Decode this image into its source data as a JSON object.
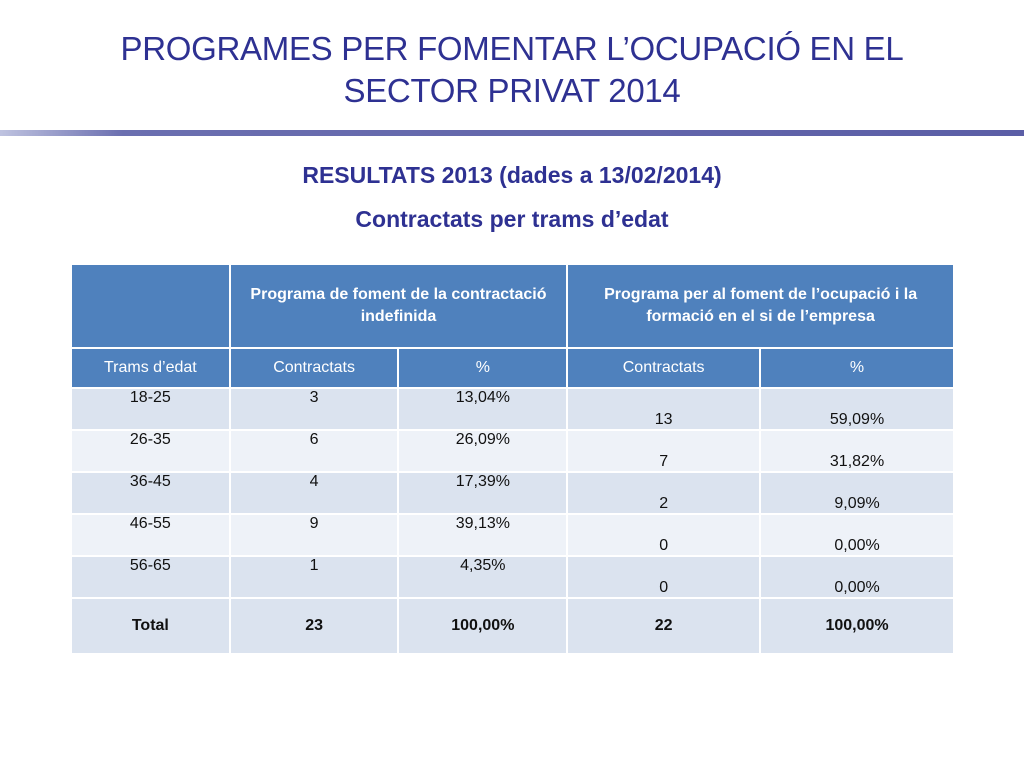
{
  "header": {
    "title_line1": "PROGRAMES PER FOMENTAR L’OCUPACIÓ EN EL",
    "title_line2": "SECTOR PRIVAT 2014",
    "subtitle": "RESULTATS 2013 (dades a 13/02/2014)",
    "subtitle2": "Contractats per trams d’edat"
  },
  "table": {
    "programs": [
      "Programa de foment de la contractació indefinida",
      "Programa per al foment de l’ocupació i la formació en el si de l’empresa"
    ],
    "columns": [
      "Trams d’edat",
      "Contractats",
      "%",
      "Contractats",
      "%"
    ],
    "rows": [
      {
        "age": "18-25",
        "p1_count": "3",
        "p1_pct": "13,04%",
        "p2_count": "13",
        "p2_pct": "59,09%"
      },
      {
        "age": "26-35",
        "p1_count": "6",
        "p1_pct": "26,09%",
        "p2_count": "7",
        "p2_pct": "31,82%"
      },
      {
        "age": "36-45",
        "p1_count": "4",
        "p1_pct": "17,39%",
        "p2_count": "2",
        "p2_pct": "9,09%"
      },
      {
        "age": "46-55",
        "p1_count": "9",
        "p1_pct": "39,13%",
        "p2_count": "0",
        "p2_pct": "0,00%"
      },
      {
        "age": "56-65",
        "p1_count": "1",
        "p1_pct": "4,35%",
        "p2_count": "0",
        "p2_pct": "0,00%"
      }
    ],
    "total": {
      "label": "Total",
      "p1_count": "23",
      "p1_pct": "100,00%",
      "p2_count": "22",
      "p2_pct": "100,00%"
    }
  },
  "colors": {
    "title": "#2e3192",
    "header_fill": "#4f81bd",
    "row_fill_dark": "#dbe3ef",
    "row_fill_light": "#eef2f8"
  }
}
